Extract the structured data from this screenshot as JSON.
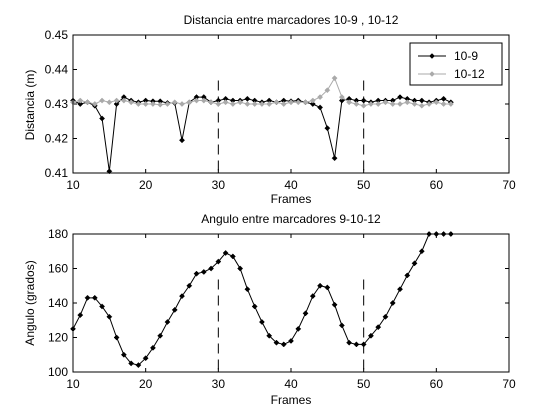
{
  "chart_data": [
    {
      "type": "line",
      "title": "Distancia entre marcadores 10-9 , 10-12",
      "xlabel": "Frames",
      "ylabel": "Distancia (m)",
      "xlim": [
        10,
        70
      ],
      "ylim": [
        0.41,
        0.45
      ],
      "xticks": [
        "10",
        "20",
        "30",
        "40",
        "50",
        "60",
        "70"
      ],
      "yticks": [
        "0.41",
        "0.42",
        "0.43",
        "0.44",
        "0.45"
      ],
      "legend": "top-right",
      "vlines": [
        30,
        50
      ],
      "x": [
        10,
        11,
        12,
        13,
        14,
        15,
        16,
        17,
        18,
        19,
        20,
        21,
        22,
        23,
        24,
        25,
        26,
        27,
        28,
        29,
        30,
        31,
        32,
        33,
        34,
        35,
        36,
        37,
        38,
        39,
        40,
        41,
        42,
        43,
        44,
        45,
        46,
        47,
        48,
        49,
        50,
        51,
        52,
        53,
        54,
        55,
        56,
        57,
        58,
        59,
        60,
        61,
        62
      ],
      "series": [
        {
          "name": "10-9",
          "color": "#000000",
          "values": [
            0.431,
            0.43,
            0.4305,
            0.4295,
            0.4258,
            0.4105,
            0.43,
            0.432,
            0.431,
            0.4305,
            0.431,
            0.4308,
            0.4308,
            0.4303,
            0.4303,
            0.4195,
            0.4305,
            0.432,
            0.432,
            0.4305,
            0.431,
            0.4315,
            0.431,
            0.431,
            0.4315,
            0.431,
            0.4305,
            0.431,
            0.4305,
            0.431,
            0.4308,
            0.431,
            0.4305,
            0.43,
            0.429,
            0.423,
            0.4143,
            0.431,
            0.4315,
            0.431,
            0.431,
            0.4305,
            0.431,
            0.431,
            0.431,
            0.432,
            0.4315,
            0.431,
            0.431,
            0.4305,
            0.431,
            0.4315,
            0.4305
          ]
        },
        {
          "name": "10-12",
          "color": "#aaaaaa",
          "values": [
            0.4305,
            0.431,
            0.4305,
            0.43,
            0.431,
            0.4305,
            0.431,
            0.431,
            0.4305,
            0.43,
            0.43,
            0.43,
            0.4298,
            0.43,
            0.4305,
            0.43,
            0.4305,
            0.431,
            0.431,
            0.4305,
            0.43,
            0.4305,
            0.43,
            0.4305,
            0.43,
            0.43,
            0.43,
            0.43,
            0.4305,
            0.43,
            0.4305,
            0.4305,
            0.4305,
            0.431,
            0.432,
            0.434,
            0.4375,
            0.432,
            0.4305,
            0.43,
            0.4295,
            0.43,
            0.43,
            0.4305,
            0.43,
            0.43,
            0.4305,
            0.43,
            0.4295,
            0.43,
            0.4305,
            0.43,
            0.43
          ]
        }
      ]
    },
    {
      "type": "line",
      "title": "Angulo entre marcadores 9-10-12",
      "xlabel": "Frames",
      "ylabel": "Angulo (grados)",
      "xlim": [
        10,
        70
      ],
      "ylim": [
        100,
        180
      ],
      "xticks": [
        "10",
        "20",
        "30",
        "40",
        "50",
        "60",
        "70"
      ],
      "yticks": [
        "100",
        "120",
        "140",
        "160",
        "180"
      ],
      "vlines": [
        30,
        50
      ],
      "x": [
        10,
        11,
        12,
        13,
        14,
        15,
        16,
        17,
        18,
        19,
        20,
        21,
        22,
        23,
        24,
        25,
        26,
        27,
        28,
        29,
        30,
        31,
        32,
        33,
        34,
        35,
        36,
        37,
        38,
        39,
        40,
        41,
        42,
        43,
        44,
        45,
        46,
        47,
        48,
        49,
        50,
        51,
        52,
        53,
        54,
        55,
        56,
        57,
        58,
        59,
        60,
        61,
        62
      ],
      "series": [
        {
          "color": "#000000",
          "values": [
            125,
            133,
            143,
            143,
            138,
            132,
            120,
            110,
            105,
            104,
            108,
            114,
            121,
            129,
            136,
            144,
            150,
            157,
            158,
            160,
            164,
            169,
            167,
            160,
            148,
            138,
            129,
            121,
            117,
            116,
            118,
            125,
            134,
            144,
            150,
            149,
            139,
            127,
            117,
            116,
            116,
            121,
            126,
            132,
            140,
            148,
            156,
            163,
            170,
            180,
            180,
            180,
            180
          ]
        }
      ]
    }
  ]
}
